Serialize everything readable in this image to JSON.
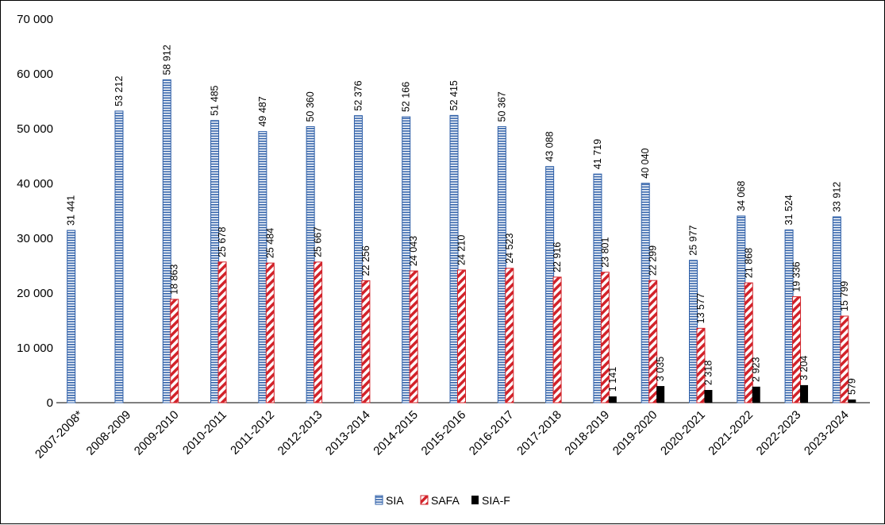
{
  "chart_data": {
    "type": "bar",
    "title": "",
    "xlabel": "",
    "ylabel": "",
    "ylim": [
      0,
      70000
    ],
    "yticks": [
      0,
      10000,
      20000,
      30000,
      40000,
      50000,
      60000,
      70000
    ],
    "ytick_labels": [
      "0",
      "10 000",
      "20 000",
      "30 000",
      "40 000",
      "50 000",
      "60 000",
      "70 000"
    ],
    "grid": false,
    "legend_position": "bottom-center",
    "categories": [
      "2007-2008*",
      "2008-2009",
      "2009-2010",
      "2010-2011",
      "2011-2012",
      "2012-2013",
      "2013-2014",
      "2014-2015",
      "2015-2016",
      "2016-2017",
      "2017-2018",
      "2018-2019",
      "2019-2020",
      "2020-2021",
      "2021-2022",
      "2022-2023",
      "2023-2024"
    ],
    "series": [
      {
        "name": "SIA",
        "pattern": "horizontal-stripes",
        "color": "#2e5fa8",
        "values": [
          31441,
          53212,
          58912,
          51485,
          49487,
          50360,
          52376,
          52166,
          52415,
          50367,
          43088,
          41719,
          40040,
          25977,
          34068,
          31524,
          33912
        ],
        "labels": [
          "31 441",
          "53 212",
          "58 912",
          "51 485",
          "49 487",
          "50 360",
          "52 376",
          "52 166",
          "52 415",
          "50 367",
          "43 088",
          "41 719",
          "40 040",
          "25 977",
          "34 068",
          "31 524",
          "33 912"
        ]
      },
      {
        "name": "SAFA",
        "pattern": "diagonal-stripes",
        "color": "#d2232a",
        "values": [
          null,
          null,
          18863,
          25678,
          25484,
          25667,
          22256,
          24043,
          24210,
          24523,
          22916,
          23801,
          22299,
          13577,
          21868,
          19336,
          15799
        ],
        "labels": [
          "",
          "",
          "18 863",
          "25 678",
          "25 484",
          "25 667",
          "22 256",
          "24 043",
          "24 210",
          "24 523",
          "22 916",
          "23 801",
          "22 299",
          "13 577",
          "21 868",
          "19 336",
          "15 799"
        ]
      },
      {
        "name": "SIA-F",
        "pattern": "solid",
        "color": "#000000",
        "values": [
          null,
          null,
          null,
          null,
          null,
          null,
          null,
          null,
          null,
          null,
          null,
          1141,
          3035,
          2318,
          2923,
          3204,
          579
        ],
        "labels": [
          "",
          "",
          "",
          "",
          "",
          "",
          "",
          "",
          "",
          "",
          "",
          "1 141",
          "3 035",
          "2 318",
          "2 923",
          "3 204",
          "579"
        ]
      }
    ]
  }
}
